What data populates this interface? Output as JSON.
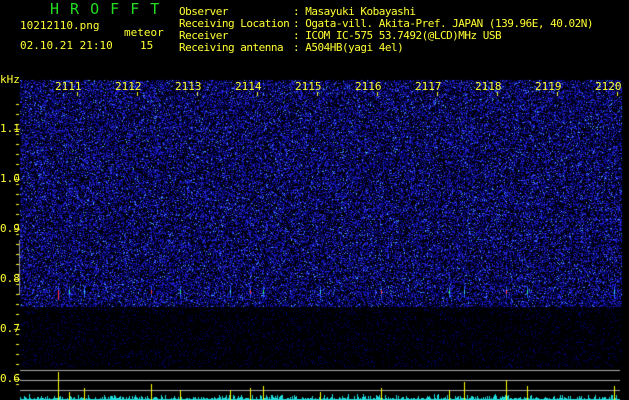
{
  "header": {
    "app_title": "H R O F F T",
    "filename": "10212110.png",
    "datetime": "02.10.21 21:10",
    "meteor_label": "meteor",
    "meteor_count": "15",
    "fields": [
      {
        "label": "Observer",
        "value": ": Masayuki Kobayashi"
      },
      {
        "label": "Receiving Location",
        "value": ": Ogata-vill. Akita-Pref. JAPAN (139.96E, 40.02N)"
      },
      {
        "label": "Receiver",
        "value": ": ICOM IC-575 53.7492(@LCD)MHz USB"
      },
      {
        "label": "Receiving antenna",
        "value": ": A504HB(yagi 4el)"
      }
    ]
  },
  "colors": {
    "text": "#ffff33",
    "title": "#22dd22",
    "noise": "#1a22cc",
    "histogram": "#22dddd",
    "spike": "#ffff00",
    "grid": "#aaaaaa"
  },
  "chart_data": {
    "type": "heatmap",
    "ylabel": "kHz",
    "x_ticks": [
      "2111",
      "2112",
      "2113",
      "2114",
      "2115",
      "2116",
      "2117",
      "2118",
      "2119",
      "2120"
    ],
    "y_ticks": [
      "1.1",
      "1.0",
      "0.9",
      "0.8",
      "0.7",
      "0.6"
    ],
    "ylim": [
      0.58,
      1.2
    ],
    "grid": false,
    "echo_frequency_khz": 0.77,
    "echoes_time": [
      2110.68,
      2110.87,
      2111.12,
      2112.23,
      2112.72,
      2113.55,
      2113.88,
      2114.1,
      2115.05,
      2116.07,
      2117.2,
      2117.45,
      2118.15,
      2118.5,
      2119.95
    ]
  }
}
